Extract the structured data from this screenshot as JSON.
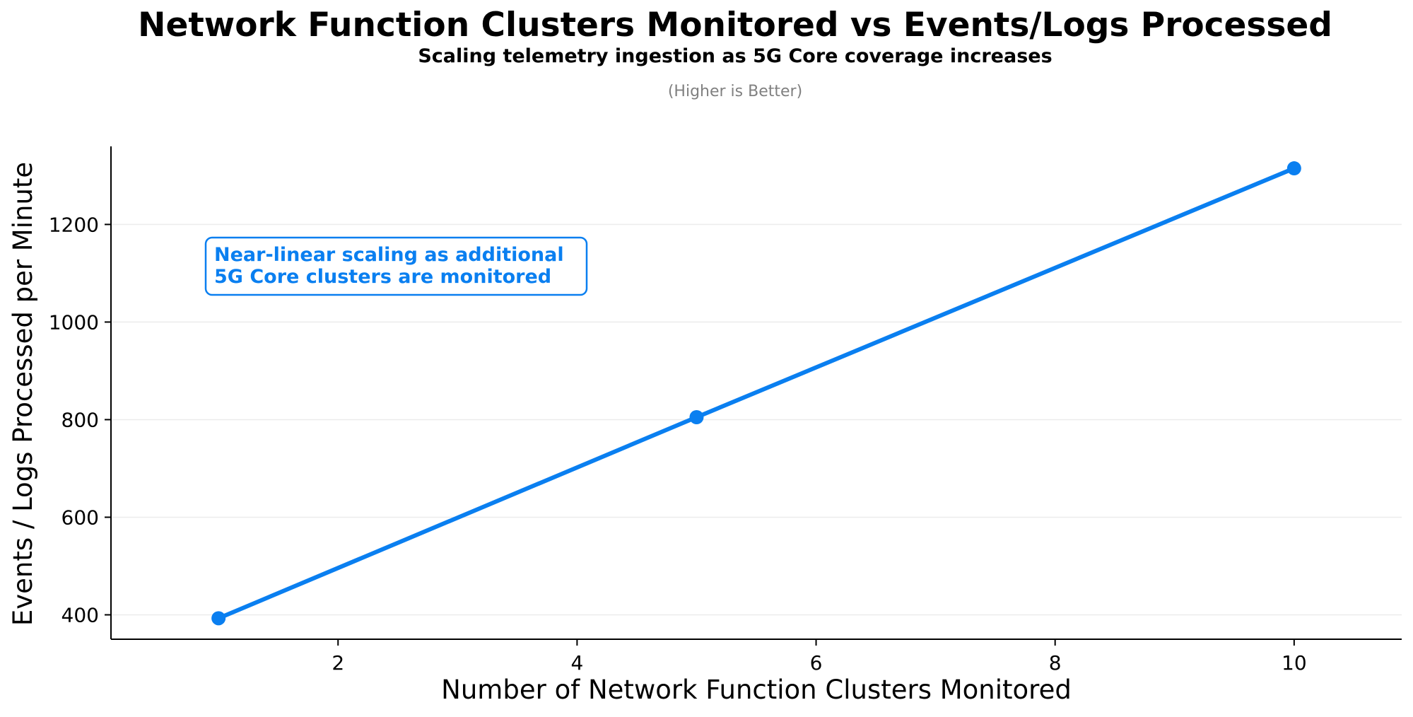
{
  "chart_data": {
    "type": "line",
    "title": "Network Function Clusters Monitored vs Events/Logs Processed",
    "subtitle": "Scaling telemetry ingestion as 5G Core coverage increases",
    "note": "(Higher is Better)",
    "xlabel": "Number of Network Function Clusters Monitored",
    "ylabel": "Events / Logs Processed per Minute",
    "xlim": [
      0.1,
      10.9
    ],
    "ylim": [
      350,
      1360
    ],
    "xticks": [
      2,
      4,
      6,
      8,
      10
    ],
    "yticks": [
      400,
      600,
      800,
      1000,
      1200
    ],
    "grid": "horizontal",
    "series": [
      {
        "x": [
          1,
          5,
          10
        ],
        "values": [
          393,
          805,
          1315
        ],
        "color": "#0a7ff0"
      }
    ],
    "annotation": {
      "lines": [
        "Near-linear scaling as additional",
        "5G Core clusters are monitored"
      ],
      "color": "#0a7ff0"
    }
  }
}
